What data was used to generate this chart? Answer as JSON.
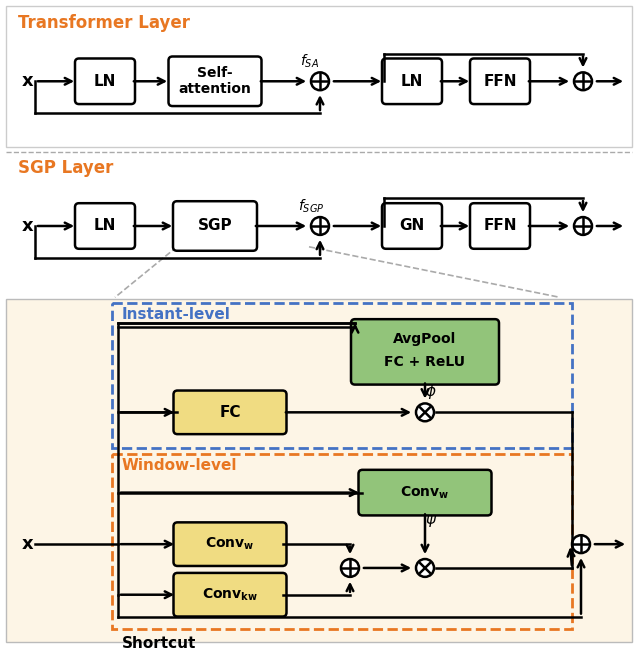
{
  "fig_width": 6.38,
  "fig_height": 6.54,
  "bg_color": "#ffffff",
  "bottom_bg_color": "#fdf5e6",
  "orange_color": "#E87722",
  "blue_color": "#4472C4",
  "green_fill": "#92C47A",
  "yellow_fill": "#F0DC82",
  "white_fill": "#ffffff",
  "transformer_label": "Transformer Layer",
  "sgp_label": "SGP Layer",
  "instant_label": "Instant-level",
  "window_label": "Window-level",
  "shortcut_label": "Shortcut"
}
